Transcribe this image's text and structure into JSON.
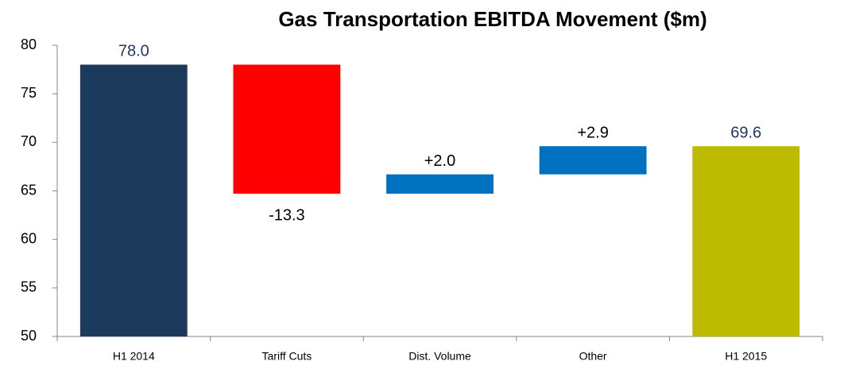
{
  "chart_data": {
    "type": "waterfall",
    "title": "Gas Transportation EBITDA Movement ($m)",
    "categories": [
      "H1 2014",
      "Tariff Cuts",
      "Dist. Volume",
      "Other",
      "H1 2015"
    ],
    "values": [
      78.0,
      -13.3,
      2.0,
      2.9,
      69.6
    ],
    "value_labels": [
      "78.0",
      "-13.3",
      "+2.0",
      "+2.9",
      "69.6"
    ],
    "measure": [
      "absolute",
      "relative",
      "relative",
      "relative",
      "total"
    ],
    "colors": [
      "#1b3a5c",
      "#ff0000",
      "#0070c0",
      "#0070c0",
      "#bdbb00"
    ],
    "ylim": [
      50,
      80
    ],
    "yticks": [
      50,
      55,
      60,
      65,
      70,
      75,
      80
    ],
    "grid": false
  }
}
